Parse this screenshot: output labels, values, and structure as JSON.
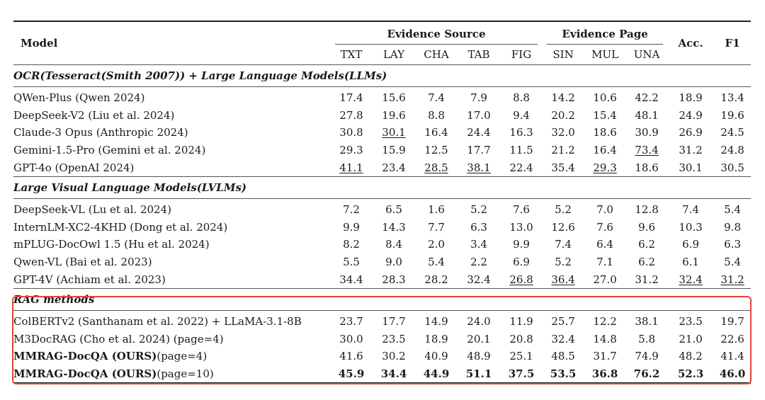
{
  "header": {
    "model": "Model",
    "evidence_source": "Evidence Source",
    "evidence_page": "Evidence Page",
    "acc": "Acc.",
    "f1": "F1",
    "cols": [
      "TXT",
      "LAY",
      "CHA",
      "TAB",
      "FIG",
      "SIN",
      "MUL",
      "UNA"
    ]
  },
  "sections": [
    {
      "title": "OCR(Tesseract(Smith 2007)) + Large Language Models(LLMs)",
      "rows": [
        {
          "model": "QWen-Plus (Qwen 2024)",
          "values": [
            "17.4",
            "15.6",
            "7.4",
            "7.9",
            "8.8",
            "14.2",
            "10.6",
            "42.2",
            "18.9",
            "13.4"
          ]
        },
        {
          "model": "DeepSeek-V2 (Liu et al. 2024)",
          "values": [
            "27.8",
            "19.6",
            "8.8",
            "17.0",
            "9.4",
            "20.2",
            "15.4",
            "48.1",
            "24.9",
            "19.6"
          ]
        },
        {
          "model": "Claude-3 Opus (Anthropic 2024)",
          "values": [
            "30.8",
            "30.1",
            "16.4",
            "24.4",
            "16.3",
            "32.0",
            "18.6",
            "30.9",
            "26.9",
            "24.5"
          ]
        },
        {
          "model": "Gemini-1.5-Pro (Gemini et al. 2024)",
          "values": [
            "29.3",
            "15.9",
            "12.5",
            "17.7",
            "11.5",
            "21.2",
            "16.4",
            "73.4",
            "31.2",
            "24.8"
          ]
        },
        {
          "model": "GPT-4o (OpenAI 2024)",
          "values": [
            "41.1",
            "23.4",
            "28.5",
            "38.1",
            "22.4",
            "35.4",
            "29.3",
            "18.6",
            "30.1",
            "30.5"
          ]
        }
      ]
    },
    {
      "title": "Large Visual Language Models(LVLMs)",
      "rows": [
        {
          "model": "DeepSeek-VL (Lu et al. 2024)",
          "values": [
            "7.2",
            "6.5",
            "1.6",
            "5.2",
            "7.6",
            "5.2",
            "7.0",
            "12.8",
            "7.4",
            "5.4"
          ]
        },
        {
          "model": "InternLM-XC2-4KHD (Dong et al. 2024)",
          "values": [
            "9.9",
            "14.3",
            "7.7",
            "6.3",
            "13.0",
            "12.6",
            "7.6",
            "9.6",
            "10.3",
            "9.8"
          ]
        },
        {
          "model": "mPLUG-DocOwl 1.5 (Hu et al. 2024)",
          "values": [
            "8.2",
            "8.4",
            "2.0",
            "3.4",
            "9.9",
            "7.4",
            "6.4",
            "6.2",
            "6.9",
            "6.3"
          ]
        },
        {
          "model": "Qwen-VL (Bai et al. 2023)",
          "values": [
            "5.5",
            "9.0",
            "5.4",
            "2.2",
            "6.9",
            "5.2",
            "7.1",
            "6.2",
            "6.1",
            "5.4"
          ]
        },
        {
          "model": "GPT-4V (Achiam et al. 2023)",
          "values": [
            "34.4",
            "28.3",
            "28.2",
            "32.4",
            "26.8",
            "36.4",
            "27.0",
            "31.2",
            "32.4",
            "31.2"
          ]
        }
      ]
    },
    {
      "title": "RAG methods",
      "rows": [
        {
          "model": "ColBERTv2 (Santhanam et al. 2022) + LLaMA-3.1-8B",
          "model_suffix": "",
          "values": [
            "23.7",
            "17.7",
            "14.9",
            "24.0",
            "11.9",
            "25.7",
            "12.2",
            "38.1",
            "23.5",
            "19.7"
          ]
        },
        {
          "model": "M3DocRAG (Cho et al. 2024) (page=4)",
          "model_suffix": "",
          "values": [
            "30.0",
            "23.5",
            "18.9",
            "20.1",
            "20.8",
            "32.4",
            "14.8",
            "5.8",
            "21.0",
            "22.6"
          ]
        },
        {
          "model": "MMRAG-DocQA (OURS)",
          "model_suffix": "(page=4)",
          "values": [
            "41.6",
            "30.2",
            "40.9",
            "48.9",
            "25.1",
            "48.5",
            "31.7",
            "74.9",
            "48.2",
            "41.4"
          ]
        },
        {
          "model": "MMRAG-DocQA (OURS)",
          "model_suffix": "(page=10)",
          "values": [
            "45.9",
            "34.4",
            "44.9",
            "51.1",
            "37.5",
            "53.5",
            "36.8",
            "76.2",
            "52.3",
            "46.0"
          ]
        }
      ]
    }
  ],
  "highlight_color": "#e0463a"
}
